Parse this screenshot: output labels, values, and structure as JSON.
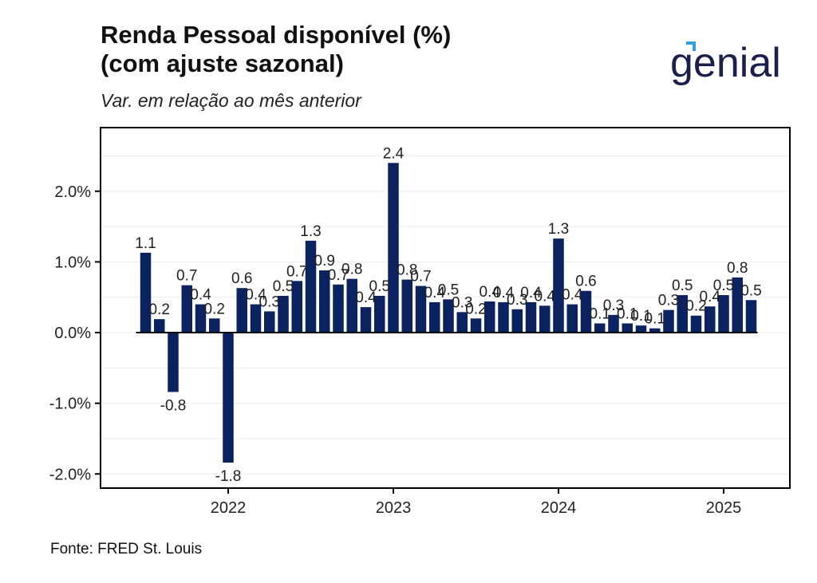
{
  "header": {
    "title_line1": "Renda Pessoal disponível (%)",
    "title_line2": "(com ajuste sazonal)",
    "subtitle": "Var. em relação ao mês anterior"
  },
  "logo": {
    "text": "genial",
    "brand_color": "#1a1f4e",
    "accent_color": "#2f9fe0"
  },
  "footer": {
    "source": "Fonte: FRED St. Louis"
  },
  "colors": {
    "bar": "#0b2260",
    "axis": "#000000",
    "grid": "#ececec"
  },
  "chart_data": {
    "type": "bar",
    "title": "Renda Pessoal disponível (%) (com ajuste sazonal)",
    "subtitle": "Var. em relação ao mês anterior",
    "xlabel": "",
    "ylabel": "",
    "ylim": [
      -2.2,
      2.9
    ],
    "yticks": [
      -2.0,
      -1.0,
      0.0,
      1.0,
      2.0
    ],
    "ytick_labels": [
      "-2.0%",
      "-1.0%",
      "0.0%",
      "1.0%",
      "2.0%"
    ],
    "xticks": [
      "2022",
      "2023",
      "2024",
      "2025"
    ],
    "grid": true,
    "categories": [
      "2021-07",
      "2021-08",
      "2021-09",
      "2021-10",
      "2021-11",
      "2021-12",
      "2022-01",
      "2022-02",
      "2022-03",
      "2022-04",
      "2022-05",
      "2022-06",
      "2022-07",
      "2022-08",
      "2022-09",
      "2022-10",
      "2022-11",
      "2022-12",
      "2023-01",
      "2023-02",
      "2023-03",
      "2023-04",
      "2023-05",
      "2023-06",
      "2023-07",
      "2023-08",
      "2023-09",
      "2023-10",
      "2023-11",
      "2023-12",
      "2024-01",
      "2024-02",
      "2024-03",
      "2024-04",
      "2024-05",
      "2024-06",
      "2024-07",
      "2024-08",
      "2024-09",
      "2024-10",
      "2024-11",
      "2024-12",
      "2025-01",
      "2025-02",
      "2025-03"
    ],
    "values": [
      1.13,
      0.19,
      -0.84,
      0.67,
      0.4,
      0.2,
      -1.84,
      0.63,
      0.4,
      0.3,
      0.52,
      0.73,
      1.3,
      0.88,
      0.68,
      0.76,
      0.36,
      0.52,
      2.4,
      0.75,
      0.66,
      0.43,
      0.47,
      0.29,
      0.2,
      0.44,
      0.43,
      0.33,
      0.43,
      0.38,
      1.33,
      0.4,
      0.59,
      0.13,
      0.25,
      0.13,
      0.1,
      0.06,
      0.32,
      0.53,
      0.24,
      0.37,
      0.53,
      0.78,
      0.46
    ],
    "labels": [
      "1.1",
      "0.2",
      "-0.8",
      "0.7",
      "0.4",
      "0.2",
      "-1.8",
      "0.6",
      "0.4",
      "0.3",
      "0.5",
      "0.7",
      "1.3",
      "0.9",
      "0.7",
      "0.8",
      "0.4",
      "0.5",
      "2.4",
      "0.8",
      "0.7",
      "0.4",
      "0.5",
      "0.3",
      "0.2",
      "0.4",
      "0.4",
      "0.3",
      "0.4",
      "0.4",
      "1.3",
      "0.4",
      "0.6",
      "0.1",
      "0.3",
      "0.1",
      "0.1",
      "0.1",
      "0.3",
      "0.5",
      "0.2",
      "0.4",
      "0.5",
      "0.8",
      "0.5"
    ]
  }
}
